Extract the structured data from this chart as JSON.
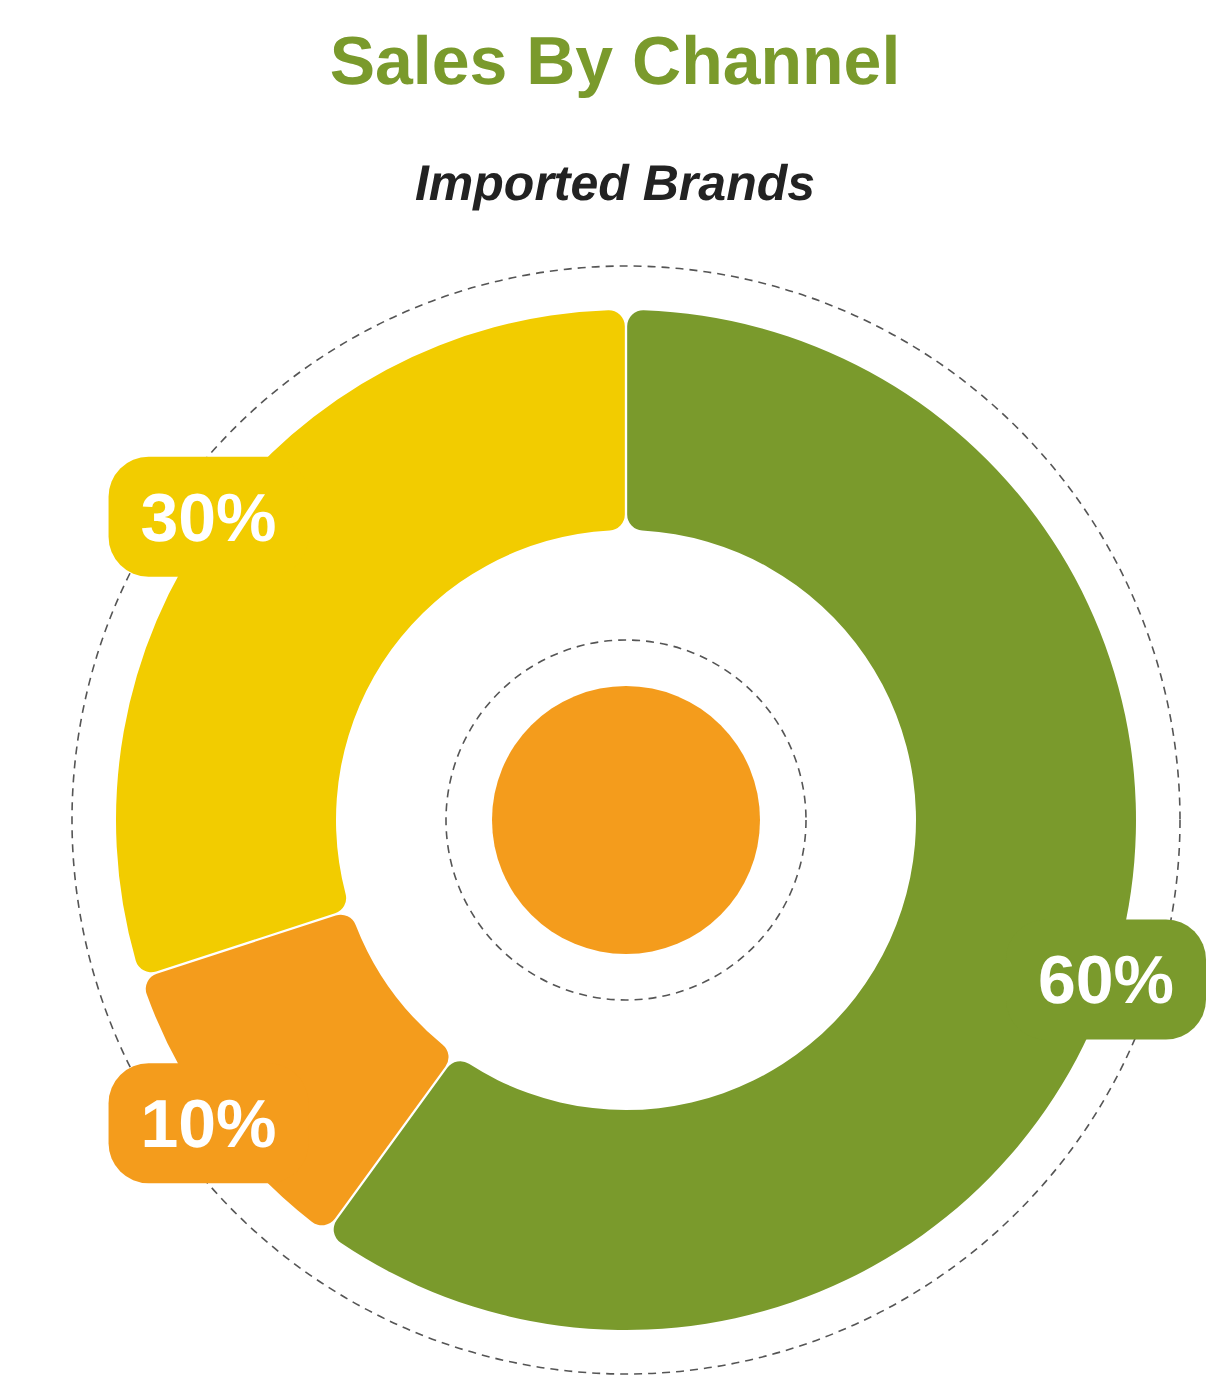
{
  "chart_data": {
    "type": "donut",
    "title": "Sales By Channel",
    "subtitle": "Imported Brands",
    "categories": [
      null,
      null,
      null
    ],
    "values": [
      60,
      10,
      30
    ],
    "colors": [
      "#7a9a2c",
      "#f49c1c",
      "#f2cc00"
    ],
    "value_labels": [
      "60%",
      "10%",
      "30%"
    ]
  }
}
